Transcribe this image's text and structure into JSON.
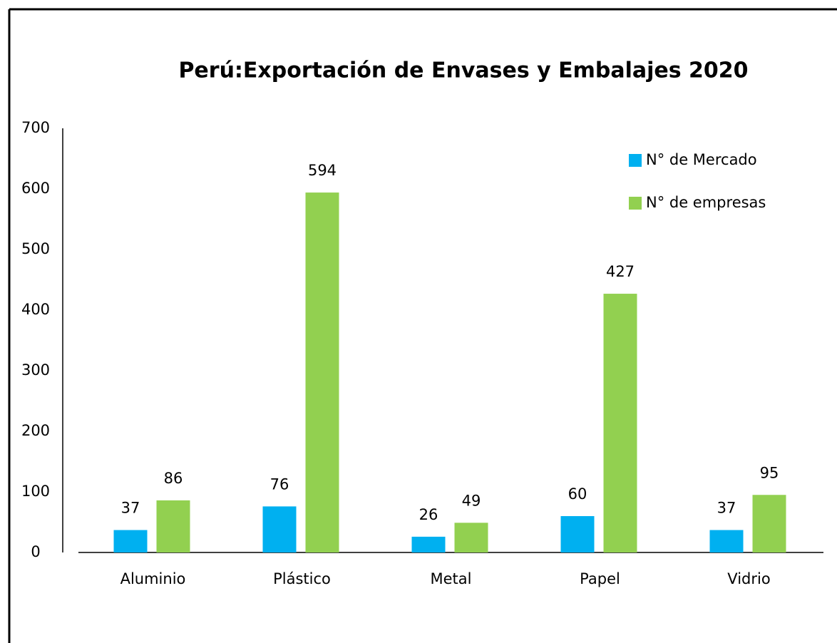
{
  "chart_data": {
    "type": "bar",
    "title": "Perú:Exportación de Envases y Embalajes 2020",
    "categories": [
      "Aluminio",
      "Plástico",
      "Metal",
      "Papel",
      "Vidrio"
    ],
    "series": [
      {
        "name": "N° de Mercado",
        "color": "#00b0f0",
        "values": [
          37,
          76,
          26,
          60,
          37
        ]
      },
      {
        "name": "N° de empresas",
        "color": "#92d050",
        "values": [
          86,
          594,
          49,
          427,
          95
        ]
      }
    ],
    "ylim": [
      0,
      700
    ],
    "yticks": [
      0,
      100,
      200,
      300,
      400,
      500,
      600,
      700
    ],
    "grid": false,
    "legend": "top-right"
  }
}
